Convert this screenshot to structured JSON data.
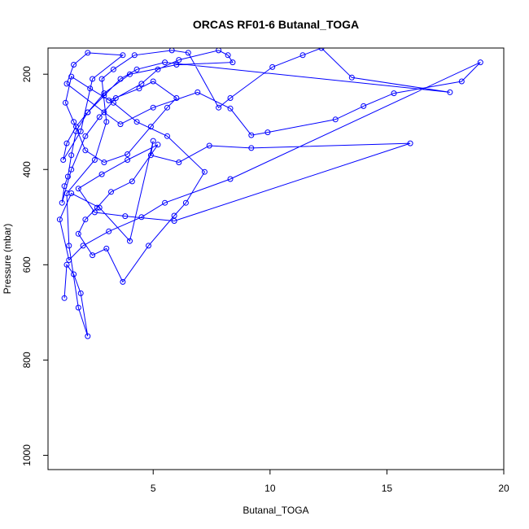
{
  "chart_data": {
    "type": "line",
    "title": "ORCAS RF01-6 Butanal_TOGA",
    "xlabel": "Butanal_TOGA",
    "ylabel": "Pressure (mbar)",
    "xlim": [
      0.5,
      20
    ],
    "ylim": [
      1030,
      145
    ],
    "y_reversed": true,
    "x_ticks": [
      5,
      10,
      15,
      20
    ],
    "y_ticks": [
      200,
      400,
      600,
      800,
      1000
    ],
    "grid": false,
    "legend": "none",
    "colors": {
      "series": "#0000ff",
      "axes": "#000000",
      "background": "#ffffff"
    },
    "markers": "open-circle",
    "series": [
      {
        "x": [
          1.2,
          1.3,
          1.6,
          1.9,
          2.2,
          1.8,
          1.4,
          1.3,
          2.5,
          3.0,
          2.8,
          3.3,
          4.2,
          5.8,
          6.5,
          7.8,
          8.3,
          10.1,
          11.4,
          12.2,
          13.5,
          17.7,
          5.5,
          4.3,
          3.6,
          2.9,
          2.2,
          1.7,
          1.5,
          1.35,
          1.2,
          1.1,
          1.5,
          2.1,
          2.7,
          3.4,
          4.5,
          5.2,
          6.1,
          7.8,
          8.2,
          8.4,
          6.0,
          4.0,
          2.9,
          2.2,
          1.7,
          1.3,
          1.15,
          1.9,
          2.4,
          3.7,
          2.2,
          1.6,
          1.3,
          2.9,
          3.6,
          5.0,
          6.9,
          8.3,
          9.2,
          9.9,
          12.8,
          14.0,
          15.3,
          18.2,
          19.0,
          8.3,
          5.5,
          4.5,
          3.1,
          2.0,
          1.4,
          1.0,
          1.5,
          2.7,
          4.0,
          5.0,
          4.9,
          6.1,
          7.4,
          9.2,
          16.0,
          5.9,
          3.8,
          2.5,
          1.8,
          2.8,
          3.9,
          5.2,
          4.1,
          3.2,
          2.6,
          2.1,
          1.8,
          2.4,
          3.0,
          3.7,
          4.8,
          5.9,
          6.4,
          7.2,
          5.6,
          4.3,
          3.3,
          2.3,
          1.5,
          1.25,
          1.6,
          2.1,
          2.9,
          3.9,
          4.9,
          5.6,
          6.0,
          5.0,
          4.4,
          3.1
        ],
        "y": [
          670,
          600,
          620,
          660,
          750,
          690,
          560,
          450,
          380,
          300,
          210,
          190,
          160,
          150,
          155,
          270,
          250,
          185,
          160,
          145,
          207,
          238,
          175,
          190,
          210,
          245,
          280,
          320,
          370,
          415,
          435,
          470,
          400,
          330,
          290,
          250,
          220,
          190,
          170,
          150,
          160,
          175,
          180,
          200,
          240,
          280,
          310,
          345,
          380,
          320,
          210,
          160,
          155,
          180,
          220,
          280,
          305,
          270,
          238,
          272,
          328,
          322,
          295,
          267,
          240,
          215,
          175,
          420,
          470,
          500,
          530,
          560,
          590,
          505,
          450,
          480,
          550,
          340,
          370,
          385,
          350,
          355,
          345,
          508,
          498,
          490,
          440,
          410,
          380,
          348,
          425,
          447,
          480,
          505,
          535,
          580,
          566,
          636,
          560,
          497,
          470,
          405,
          330,
          300,
          260,
          230,
          205,
          260,
          300,
          360,
          385,
          368,
          310,
          270,
          250,
          215,
          230,
          255
        ]
      }
    ]
  }
}
